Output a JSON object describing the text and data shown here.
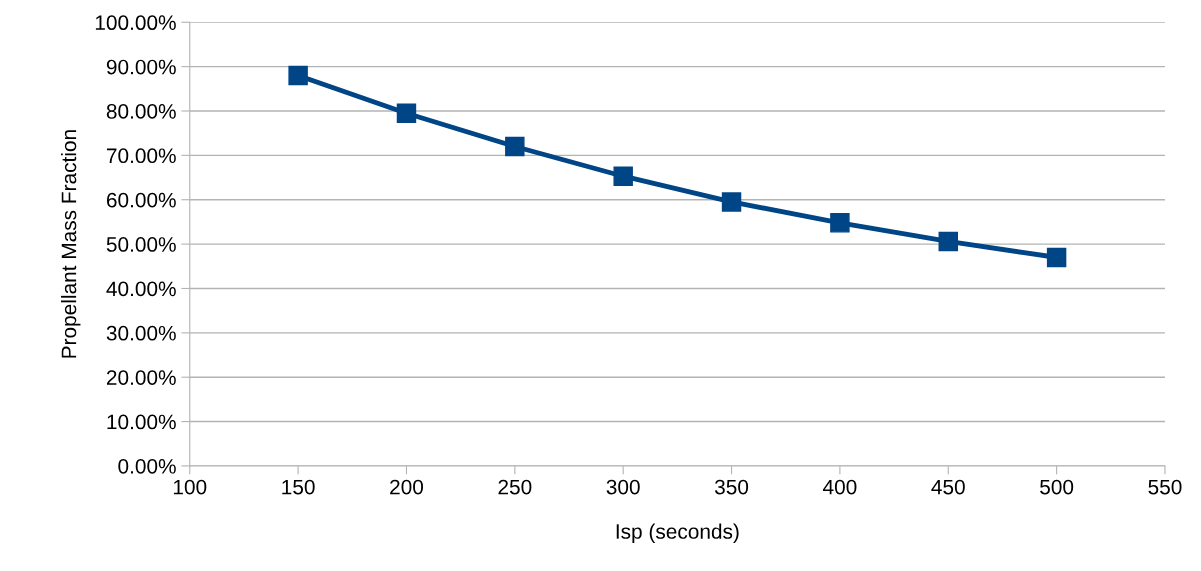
{
  "chart_data": {
    "type": "line",
    "xlabel": "Isp (seconds)",
    "ylabel": "Propellant Mass Fraction",
    "x": [
      150,
      200,
      250,
      300,
      350,
      400,
      450,
      500
    ],
    "series": [
      {
        "color": "#004586",
        "values": [
          88.0,
          79.5,
          72.0,
          65.3,
          59.5,
          54.8,
          50.6,
          47.0
        ]
      }
    ],
    "xlim": [
      100,
      550
    ],
    "xticks": [
      100,
      150,
      200,
      250,
      300,
      350,
      400,
      450,
      500,
      550
    ],
    "ylim": [
      0,
      100
    ],
    "yticks": [
      {
        "value": 0,
        "label": "0.00%"
      },
      {
        "value": 10,
        "label": "10.00%"
      },
      {
        "value": 20,
        "label": "20.00%"
      },
      {
        "value": 30,
        "label": "30.00%"
      },
      {
        "value": 40,
        "label": "40.00%"
      },
      {
        "value": 50,
        "label": "50.00%"
      },
      {
        "value": 60,
        "label": "60.00%"
      },
      {
        "value": 70,
        "label": "70.00%"
      },
      {
        "value": 80,
        "label": "80.00%"
      },
      {
        "value": 90,
        "label": "90.00%"
      },
      {
        "value": 100,
        "label": "100.00%"
      }
    ],
    "grid": "y",
    "marker": "square",
    "line_style": "solid"
  }
}
